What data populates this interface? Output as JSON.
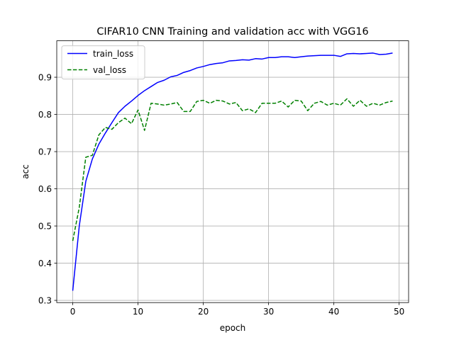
{
  "chart_data": {
    "type": "line",
    "title": "CIFAR10 CNN Training and validation acc with VGG16",
    "xlabel": "epoch",
    "ylabel": "acc",
    "xlim": [
      -2.45,
      51.45
    ],
    "ylim": [
      0.294,
      0.998
    ],
    "x_ticks": [
      0,
      10,
      20,
      30,
      40,
      50
    ],
    "y_ticks": [
      0.3,
      0.4,
      0.5,
      0.6,
      0.7,
      0.8,
      0.9
    ],
    "grid": true,
    "legend_position": "top-left",
    "x": [
      0,
      1,
      2,
      3,
      4,
      5,
      6,
      7,
      8,
      9,
      10,
      11,
      12,
      13,
      14,
      15,
      16,
      17,
      18,
      19,
      20,
      21,
      22,
      23,
      24,
      25,
      26,
      27,
      28,
      29,
      30,
      31,
      32,
      33,
      34,
      35,
      36,
      37,
      38,
      39,
      40,
      41,
      42,
      43,
      44,
      45,
      46,
      47,
      48,
      49
    ],
    "series": [
      {
        "name": "train_loss",
        "color": "#0000ff",
        "style": "solid",
        "values": [
          0.326,
          0.5,
          0.62,
          0.68,
          0.72,
          0.75,
          0.778,
          0.805,
          0.822,
          0.836,
          0.851,
          0.864,
          0.875,
          0.886,
          0.892,
          0.901,
          0.905,
          0.913,
          0.918,
          0.925,
          0.929,
          0.934,
          0.937,
          0.939,
          0.944,
          0.945,
          0.947,
          0.946,
          0.95,
          0.949,
          0.953,
          0.953,
          0.955,
          0.955,
          0.953,
          0.955,
          0.957,
          0.958,
          0.959,
          0.959,
          0.959,
          0.956,
          0.963,
          0.964,
          0.963,
          0.964,
          0.965,
          0.961,
          0.962,
          0.965
        ]
      },
      {
        "name": "val_loss",
        "color": "#008000",
        "style": "dashed",
        "values": [
          0.46,
          0.55,
          0.685,
          0.69,
          0.745,
          0.765,
          0.76,
          0.778,
          0.79,
          0.775,
          0.812,
          0.757,
          0.83,
          0.828,
          0.825,
          0.828,
          0.832,
          0.808,
          0.808,
          0.835,
          0.838,
          0.83,
          0.838,
          0.836,
          0.828,
          0.832,
          0.81,
          0.815,
          0.805,
          0.83,
          0.83,
          0.83,
          0.836,
          0.82,
          0.838,
          0.836,
          0.81,
          0.83,
          0.835,
          0.825,
          0.83,
          0.825,
          0.842,
          0.822,
          0.838,
          0.822,
          0.83,
          0.825,
          0.832,
          0.836
        ]
      }
    ]
  }
}
